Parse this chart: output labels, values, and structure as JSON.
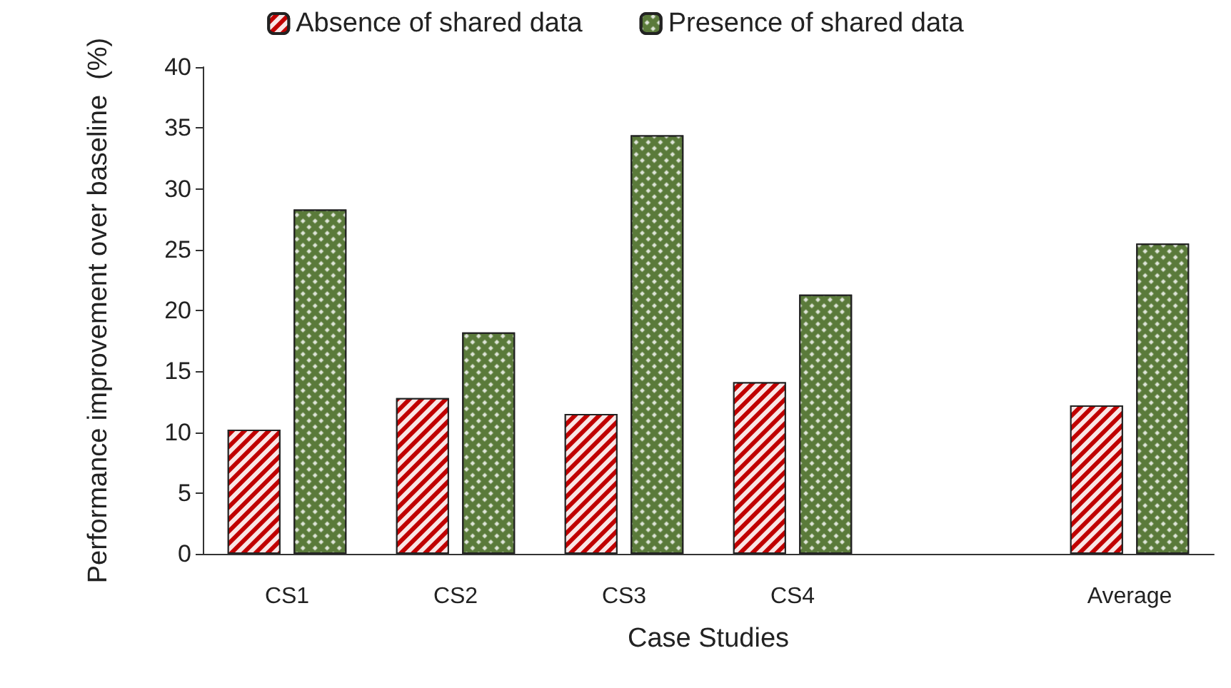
{
  "chart_data": {
    "type": "bar",
    "xlabel": "Case Studies",
    "ylabel": "Performance improvement over baseline  (%)",
    "categories": [
      "CS1",
      "CS2",
      "CS3",
      "CS4",
      null,
      "Average"
    ],
    "series": [
      {
        "name": "Absence of shared data",
        "color": "#c00000",
        "values": [
          10.2,
          12.8,
          11.5,
          14.1,
          null,
          12.2
        ]
      },
      {
        "name": "Presence of shared data",
        "color": "#5a7a3a",
        "values": [
          28.3,
          18.2,
          34.4,
          21.3,
          null,
          25.5
        ]
      }
    ],
    "ylim": [
      0,
      40
    ],
    "yticks": [
      0,
      5,
      10,
      15,
      20,
      25,
      30,
      35,
      40
    ],
    "grid": false,
    "legend": "top"
  }
}
